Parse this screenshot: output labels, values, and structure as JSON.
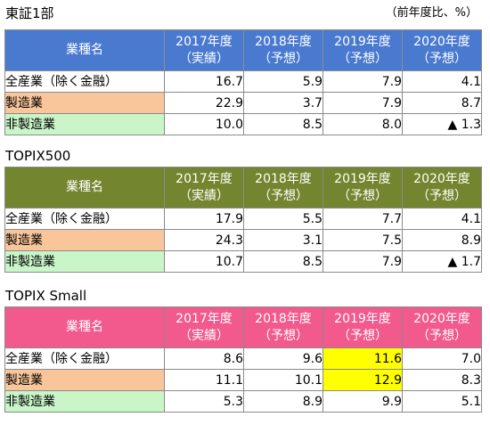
{
  "unit_note": "（前年度比、%）",
  "tables": [
    {
      "title": "東証1部",
      "header": {
        "col0": "業種名",
        "years": [
          {
            "year": "2017年度",
            "kind": "（実績）"
          },
          {
            "year": "2018年度",
            "kind": "（予想）"
          },
          {
            "year": "2019年度",
            "kind": "（予想）"
          },
          {
            "year": "2020年度",
            "kind": "（予想）"
          }
        ]
      },
      "rows": [
        {
          "label": "全産業（除く金融）",
          "values": [
            "16.7",
            "5.9",
            "7.9",
            "4.1"
          ]
        },
        {
          "label": "製造業",
          "values": [
            "22.9",
            "3.7",
            "7.9",
            "8.7"
          ]
        },
        {
          "label": "非製造業",
          "values": [
            "10.0",
            "8.5",
            "8.0",
            "▲ 1.3"
          ]
        }
      ]
    },
    {
      "title": "TOPIX500",
      "header": {
        "col0": "業種名",
        "years": [
          {
            "year": "2017年度",
            "kind": "（実績）"
          },
          {
            "year": "2018年度",
            "kind": "（予想）"
          },
          {
            "year": "2019年度",
            "kind": "（予想）"
          },
          {
            "year": "2020年度",
            "kind": "（予想）"
          }
        ]
      },
      "rows": [
        {
          "label": "全産業（除く金融）",
          "values": [
            "17.9",
            "5.5",
            "7.7",
            "4.1"
          ]
        },
        {
          "label": "製造業",
          "values": [
            "24.3",
            "3.1",
            "7.5",
            "8.9"
          ]
        },
        {
          "label": "非製造業",
          "values": [
            "10.7",
            "8.5",
            "7.9",
            "▲ 1.7"
          ]
        }
      ]
    },
    {
      "title": "TOPIX Small",
      "header": {
        "col0": "業種名",
        "years": [
          {
            "year": "2017年度",
            "kind": "（実績）"
          },
          {
            "year": "2018年度",
            "kind": "（予想）"
          },
          {
            "year": "2019年度",
            "kind": "（予想）"
          },
          {
            "year": "2020年度",
            "kind": "（予想）"
          }
        ]
      },
      "rows": [
        {
          "label": "全産業（除く金融）",
          "values": [
            "8.6",
            "9.6",
            "11.6",
            "7.0"
          ]
        },
        {
          "label": "製造業",
          "values": [
            "11.1",
            "10.1",
            "12.9",
            "8.3"
          ]
        },
        {
          "label": "非製造業",
          "values": [
            "5.3",
            "8.9",
            "9.9",
            "5.1"
          ]
        }
      ]
    }
  ],
  "colors": {
    "header_tosho1": "#4a7ad0",
    "header_topix500": "#73862f",
    "header_topixsmall": "#f2598c",
    "row_manufacturing": "#f9c69b",
    "row_non_manufacturing": "#c9f5c9",
    "highlight": "#ffff00"
  }
}
